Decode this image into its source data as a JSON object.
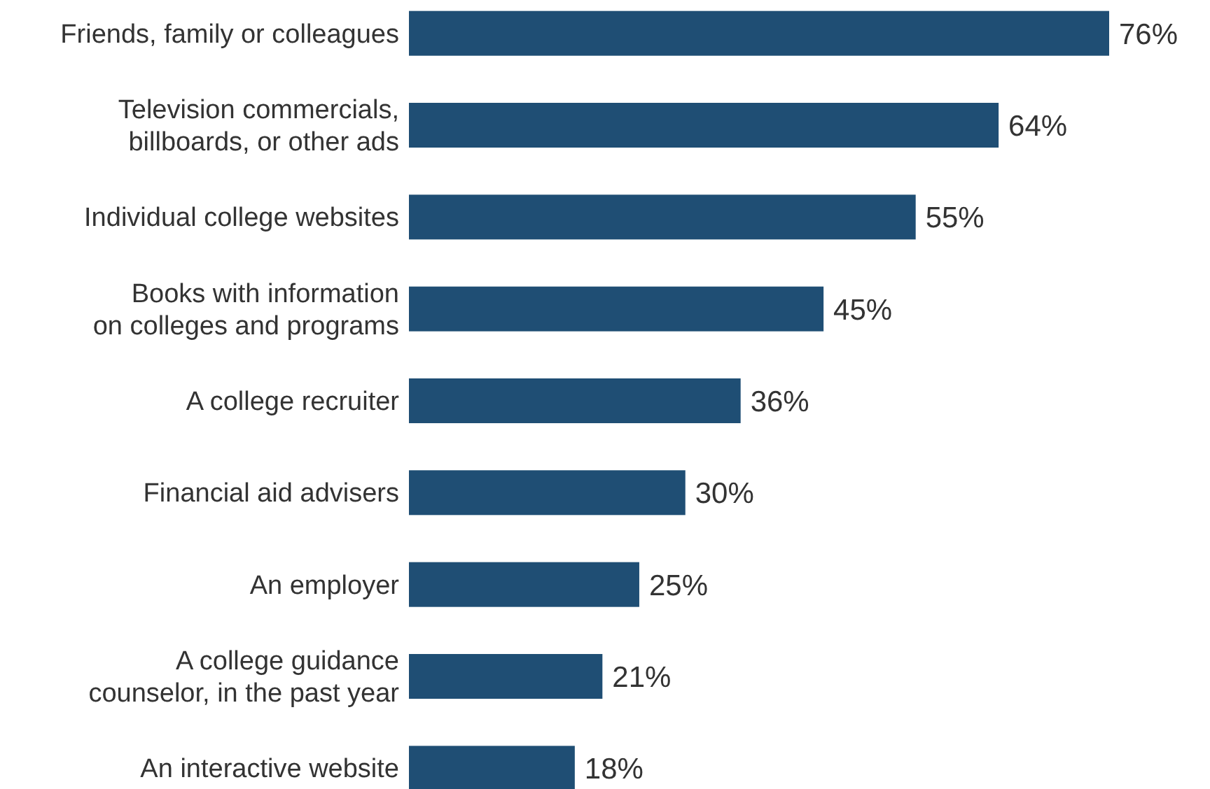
{
  "chart_data": {
    "type": "bar",
    "orientation": "horizontal",
    "color": "#1f4e74",
    "categories": [
      "Friends, family or colleagues",
      "Television commercials, billboards, or other ads",
      "Individual college websites",
      "Books with information on colleges and programs",
      "A college recruiter",
      "Financial aid advisers",
      "An employer",
      "A college guidance counselor, in the past year",
      "An interactive website"
    ],
    "values": [
      76,
      64,
      55,
      45,
      36,
      30,
      25,
      21,
      18
    ],
    "value_labels": [
      "76%",
      "64%",
      "55%",
      "45%",
      "36%",
      "30%",
      "25%",
      "21%",
      "18%"
    ]
  }
}
